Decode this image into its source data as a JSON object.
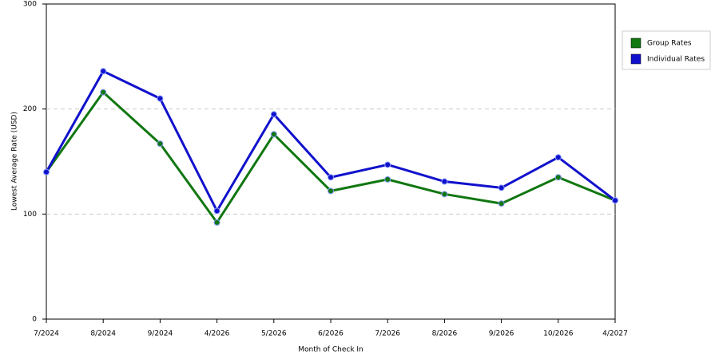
{
  "chart_data": {
    "type": "line",
    "x_label": "Month of Check In",
    "y_label": "Lowest Average Rate (USD)",
    "categories": [
      "7/2024",
      "8/2024",
      "9/2024",
      "4/2026",
      "5/2026",
      "6/2026",
      "7/2026",
      "8/2026",
      "9/2026",
      "10/2026",
      "4/2027"
    ],
    "series": [
      {
        "name": "Group Rates",
        "color": "#117711",
        "values": [
          140,
          216,
          167,
          92,
          176,
          122,
          133,
          119,
          110,
          135,
          113
        ]
      },
      {
        "name": "Individual Rates",
        "color": "#1111cc",
        "values": [
          140,
          236,
          210,
          103,
          195,
          135,
          147,
          131,
          125,
          154,
          113
        ]
      }
    ],
    "ylim": [
      0,
      300
    ],
    "yticks": [
      0,
      100,
      200,
      300
    ],
    "grid": true,
    "legend": "right"
  }
}
